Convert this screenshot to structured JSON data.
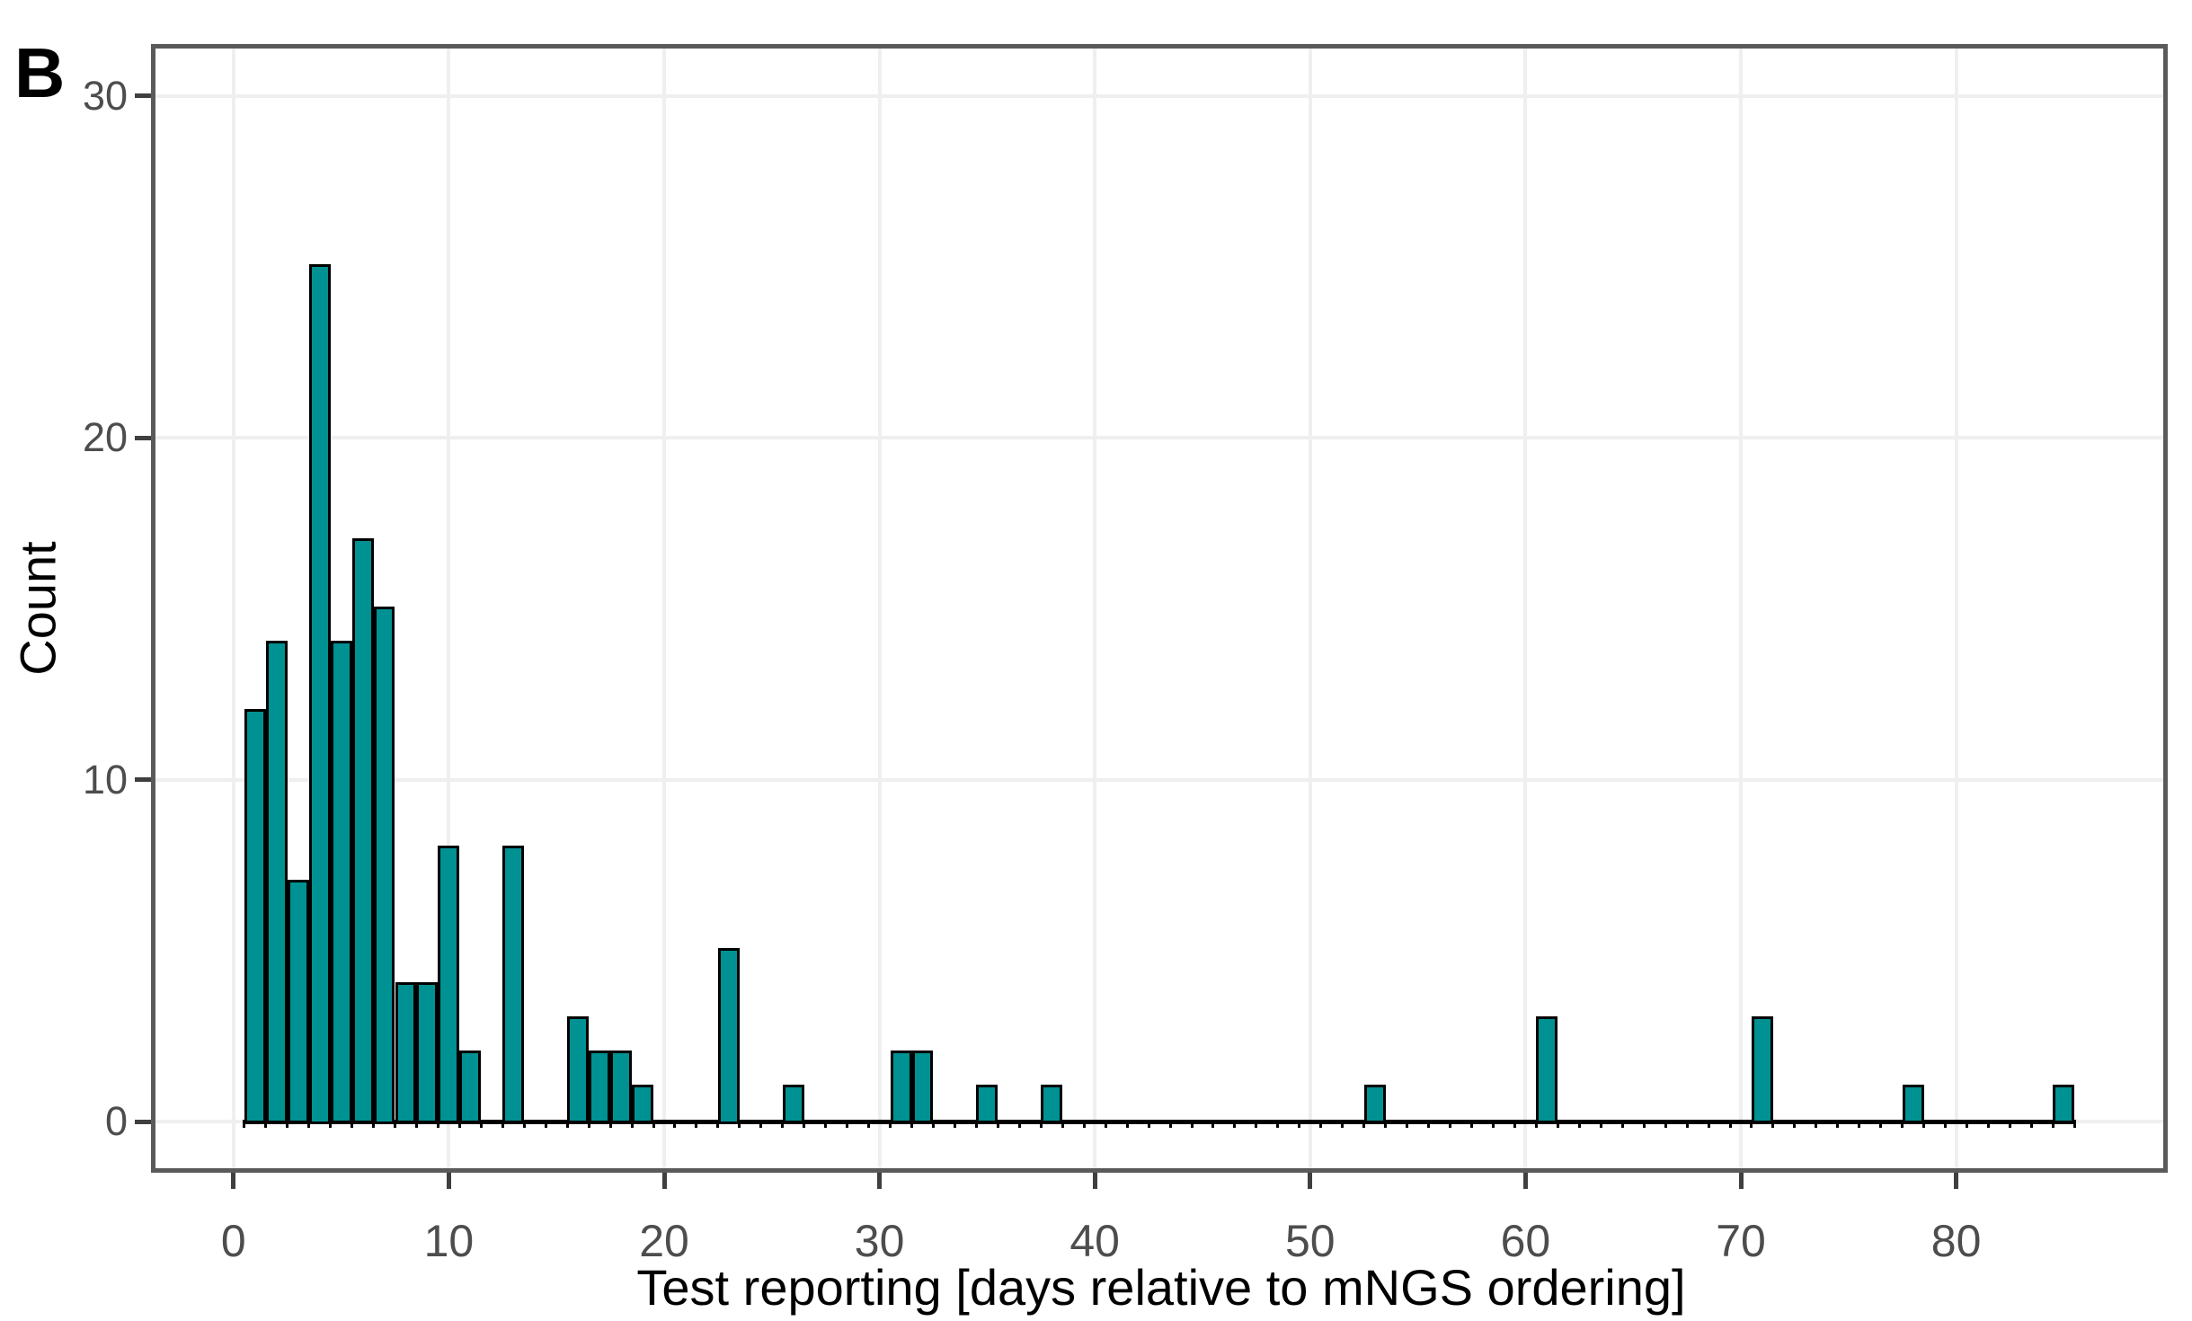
{
  "panel_label": "B",
  "chart_data": {
    "type": "bar",
    "subtype": "histogram",
    "title": "",
    "xlabel": "Test reporting [days relative to mNGS ordering]",
    "ylabel": "Count",
    "x_ticks": [
      0,
      10,
      20,
      30,
      40,
      50,
      60,
      70,
      80
    ],
    "y_ticks": [
      0,
      10,
      20,
      30
    ],
    "xlim": [
      -3.75,
      89.75
    ],
    "ylim": [
      -1.5,
      31.5
    ],
    "binwidth": 1,
    "bar_extent": [
      0.5,
      85.5
    ],
    "grid": "major-only",
    "legend": "none",
    "bars": [
      {
        "day": 1,
        "count": 12
      },
      {
        "day": 2,
        "count": 14
      },
      {
        "day": 3,
        "count": 7
      },
      {
        "day": 4,
        "count": 25
      },
      {
        "day": 5,
        "count": 14
      },
      {
        "day": 6,
        "count": 17
      },
      {
        "day": 7,
        "count": 15
      },
      {
        "day": 8,
        "count": 4
      },
      {
        "day": 9,
        "count": 4
      },
      {
        "day": 10,
        "count": 8
      },
      {
        "day": 11,
        "count": 2
      },
      {
        "day": 13,
        "count": 8
      },
      {
        "day": 16,
        "count": 3
      },
      {
        "day": 17,
        "count": 2
      },
      {
        "day": 18,
        "count": 2
      },
      {
        "day": 19,
        "count": 1
      },
      {
        "day": 23,
        "count": 5
      },
      {
        "day": 26,
        "count": 1
      },
      {
        "day": 31,
        "count": 2
      },
      {
        "day": 32,
        "count": 2
      },
      {
        "day": 35,
        "count": 1
      },
      {
        "day": 38,
        "count": 1
      },
      {
        "day": 53,
        "count": 1
      },
      {
        "day": 61,
        "count": 3
      },
      {
        "day": 71,
        "count": 3
      },
      {
        "day": 78,
        "count": 1
      },
      {
        "day": 85,
        "count": 1
      }
    ],
    "colors": {
      "bar_fill": "#009193",
      "bar_stroke": "#000000",
      "gridline": "#efefef",
      "panel_border": "#5a5a5a",
      "tick_mark": "#3f3f3f",
      "tick_text": "#4d4d4d",
      "title_text": "#000000",
      "background": "#ffffff"
    }
  }
}
